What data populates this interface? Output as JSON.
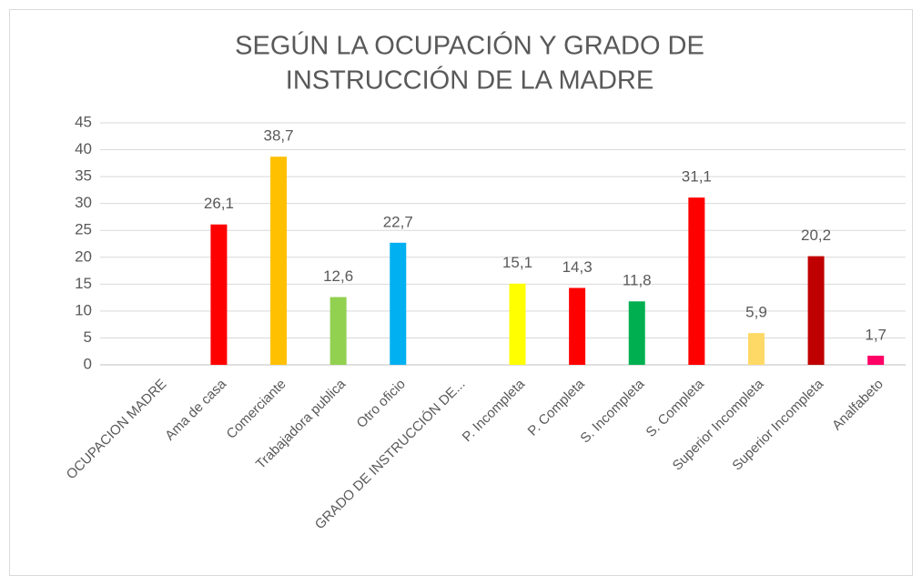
{
  "chart_data": {
    "type": "bar",
    "title": [
      "SEGÚN LA OCUPACIÓN Y GRADO DE",
      "INSTRUCCIÓN DE LA MADRE"
    ],
    "categories": [
      "OCUPACION MADRE",
      "Ama de casa",
      "Comerciante",
      "Trabajadora publica",
      "Otro oficio",
      "GRADO DE INSTRUCCIÓN DE...",
      "P. Incompleta",
      "P. Completa",
      "S. Incompleta",
      "S. Completa",
      "Superior Incompleta",
      "Superior Incompleta",
      "Analfabeto"
    ],
    "values": [
      null,
      26.1,
      38.7,
      12.6,
      22.7,
      null,
      15.1,
      14.3,
      11.8,
      31.1,
      5.9,
      20.2,
      1.7
    ],
    "value_labels": [
      null,
      "26,1",
      "38,7",
      "12,6",
      "22,7",
      null,
      "15,1",
      "14,3",
      "11,8",
      "31,1",
      "5,9",
      "20,2",
      "1,7"
    ],
    "colors": [
      null,
      "#ff0000",
      "#ffc000",
      "#92d050",
      "#00b0f0",
      null,
      "#ffff00",
      "#ff0000",
      "#00b050",
      "#ff0000",
      "#ffd966",
      "#c00000",
      "#ff0066"
    ],
    "ylim": [
      0,
      45
    ],
    "yticks": [
      0,
      5,
      10,
      15,
      20,
      25,
      30,
      35,
      40,
      45
    ],
    "grid": true
  }
}
